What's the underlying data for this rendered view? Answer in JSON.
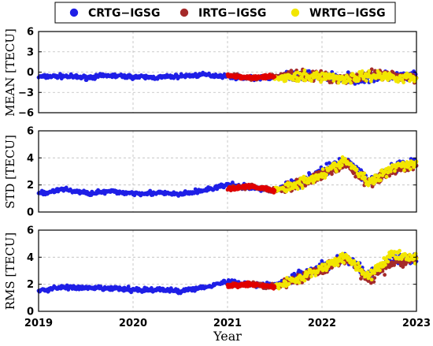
{
  "chart_data": {
    "type": "scatter",
    "legend": {
      "placement": "top",
      "entries": [
        {
          "label": "CRTG−IGSG",
          "color": "#1f1fe6"
        },
        {
          "label": "IRTG−IGSG",
          "color": "#a52a2a"
        },
        {
          "label": "WRTG−IGSG",
          "color": "#f2e600"
        }
      ]
    },
    "highlight_color": "#e00000",
    "x": {
      "label": "Year",
      "range": [
        2019,
        2023
      ],
      "ticks": [
        2019,
        2020,
        2021,
        2022,
        2023
      ],
      "tick_labels": [
        "2019",
        "2020",
        "2021",
        "2022",
        "2023"
      ]
    },
    "grid": true,
    "panels": [
      {
        "id": "mean",
        "ylabel": "MEAN [TECU]",
        "ylim": [
          -6,
          6
        ],
        "yticks": [
          -6,
          -3,
          0,
          3,
          6
        ],
        "ytick_labels": [
          "−6",
          "−3",
          "0",
          "3",
          "6"
        ],
        "series": [
          {
            "name": "CRTG−IGSG",
            "x": [
              2019.0,
              2019.25,
              2019.5,
              2019.75,
              2020.0,
              2020.25,
              2020.5,
              2020.75,
              2021.0,
              2021.25,
              2021.5,
              2021.75,
              2022.0,
              2022.25,
              2022.5,
              2022.75,
              2023.0
            ],
            "y": [
              -0.7,
              -0.6,
              -0.8,
              -0.5,
              -0.7,
              -0.8,
              -0.6,
              -0.4,
              -0.6,
              -0.9,
              -0.8,
              -0.5,
              -0.5,
              -0.9,
              -0.8,
              -0.6,
              -0.8
            ]
          },
          {
            "name": "IRTG−IGSG",
            "x": [
              2021.0,
              2021.25,
              2021.5,
              2021.75,
              2022.0,
              2022.25,
              2022.5,
              2022.75,
              2023.0
            ],
            "y": [
              -0.5,
              -0.9,
              -0.6,
              -0.4,
              -0.7,
              -0.9,
              -0.5,
              -0.6,
              -0.8
            ]
          },
          {
            "name": "WRTG−IGSG",
            "x": [
              2021.5,
              2021.75,
              2022.0,
              2022.25,
              2022.5,
              2022.75,
              2023.0
            ],
            "y": [
              -0.8,
              -0.8,
              -0.6,
              -1.0,
              -0.5,
              -0.7,
              -0.9
            ]
          }
        ]
      },
      {
        "id": "std",
        "ylabel": "STD [TECU]",
        "ylim": [
          0,
          6
        ],
        "yticks": [
          0,
          2,
          4,
          6
        ],
        "ytick_labels": [
          "0",
          "2",
          "4",
          "6"
        ],
        "series": [
          {
            "name": "CRTG−IGSG",
            "x": [
              2019.0,
              2019.25,
              2019.5,
              2019.75,
              2020.0,
              2020.25,
              2020.5,
              2020.75,
              2021.0,
              2021.25,
              2021.5,
              2021.75,
              2022.0,
              2022.25,
              2022.5,
              2022.75,
              2023.0
            ],
            "y": [
              1.3,
              1.7,
              1.4,
              1.5,
              1.4,
              1.4,
              1.3,
              1.6,
              2.0,
              1.8,
              1.6,
              2.2,
              3.0,
              3.8,
              2.3,
              3.2,
              3.6
            ]
          },
          {
            "name": "IRTG−IGSG",
            "x": [
              2021.0,
              2021.25,
              2021.5,
              2021.75,
              2022.0,
              2022.25,
              2022.5,
              2022.75,
              2023.0
            ],
            "y": [
              1.7,
              1.9,
              1.6,
              2.1,
              2.7,
              3.6,
              2.0,
              3.1,
              3.5
            ]
          },
          {
            "name": "WRTG−IGSG",
            "x": [
              2021.5,
              2021.75,
              2022.0,
              2022.25,
              2022.5,
              2022.75,
              2023.0
            ],
            "y": [
              1.6,
              2.1,
              2.8,
              3.8,
              2.1,
              3.4,
              3.6
            ]
          }
        ]
      },
      {
        "id": "rms",
        "ylabel": "RMS [TECU]",
        "ylim": [
          0,
          6
        ],
        "yticks": [
          0,
          2,
          4,
          6
        ],
        "ytick_labels": [
          "0",
          "2",
          "4",
          "6"
        ],
        "series": [
          {
            "name": "CRTG−IGSG",
            "x": [
              2019.0,
              2019.25,
              2019.5,
              2019.75,
              2020.0,
              2020.25,
              2020.5,
              2020.75,
              2021.0,
              2021.25,
              2021.5,
              2021.75,
              2022.0,
              2022.25,
              2022.5,
              2022.75,
              2023.0
            ],
            "y": [
              1.5,
              1.8,
              1.7,
              1.7,
              1.6,
              1.6,
              1.5,
              1.8,
              2.2,
              2.0,
              1.9,
              2.6,
              3.3,
              4.0,
              2.6,
              3.8,
              3.9
            ]
          },
          {
            "name": "IRTG−IGSG",
            "x": [
              2021.0,
              2021.25,
              2021.5,
              2021.75,
              2022.0,
              2022.25,
              2022.5,
              2022.75,
              2023.0
            ],
            "y": [
              1.9,
              2.0,
              1.8,
              2.4,
              3.1,
              3.9,
              2.4,
              3.6,
              3.8
            ]
          },
          {
            "name": "WRTG−IGSG",
            "x": [
              2021.5,
              2021.75,
              2022.0,
              2022.25,
              2022.5,
              2022.75,
              2023.0
            ],
            "y": [
              1.8,
              2.4,
              3.2,
              4.1,
              2.5,
              4.3,
              3.9
            ]
          }
        ]
      }
    ]
  }
}
